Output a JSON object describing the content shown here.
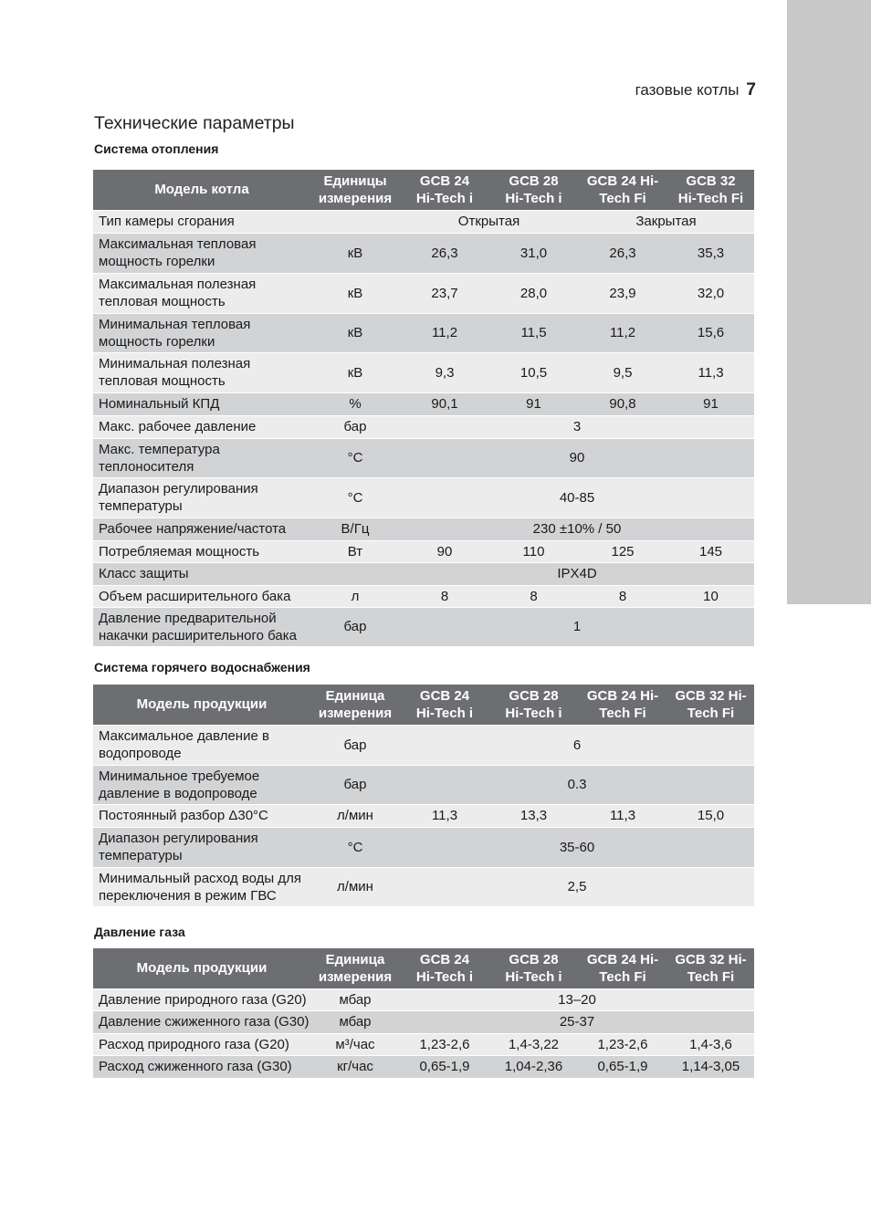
{
  "running_header": {
    "text": "газовые котлы",
    "page": "7"
  },
  "title": "Технические параметры",
  "colors": {
    "header_bg": "#6d6e71",
    "row_light": "#ececed",
    "row_dark": "#d2d3d5",
    "side_strip": "#c8c8c9"
  },
  "tables": [
    {
      "section": "Система отопления",
      "headers": [
        "Модель котла",
        "Единицы\nизмерения",
        "GCB 24\nHi-Tech i",
        "GCB 28\nHi-Tech i",
        "GCB 24 Hi-\nTech Fi",
        "GCB 32\nHi-Tech Fi"
      ],
      "rows": [
        {
          "label": "Тип камеры сгорания",
          "unit": "",
          "cells": [
            {
              "text": "Открытая",
              "span": 2
            },
            {
              "text": "Закрытая",
              "span": 2
            }
          ]
        },
        {
          "label": "Максимальная тепловая\nмощность горелки",
          "unit": "кВ",
          "cells": [
            {
              "text": "26,3"
            },
            {
              "text": "31,0"
            },
            {
              "text": "26,3"
            },
            {
              "text": "35,3"
            }
          ]
        },
        {
          "label": "Максимальная полезная\nтепловая мощность",
          "unit": "кВ",
          "cells": [
            {
              "text": "23,7"
            },
            {
              "text": "28,0"
            },
            {
              "text": "23,9"
            },
            {
              "text": "32,0"
            }
          ]
        },
        {
          "label": "Минимальная тепловая\nмощность горелки",
          "unit": "кВ",
          "cells": [
            {
              "text": "11,2"
            },
            {
              "text": "11,5"
            },
            {
              "text": "11,2"
            },
            {
              "text": "15,6"
            }
          ]
        },
        {
          "label": "Минимальная полезная\nтепловая мощность",
          "unit": "кВ",
          "cells": [
            {
              "text": "9,3"
            },
            {
              "text": "10,5"
            },
            {
              "text": "9,5"
            },
            {
              "text": "11,3"
            }
          ]
        },
        {
          "label": "Номинальный КПД",
          "unit": "%",
          "cells": [
            {
              "text": "90,1"
            },
            {
              "text": "91"
            },
            {
              "text": "90,8"
            },
            {
              "text": "91"
            }
          ]
        },
        {
          "label": "Макс. рабочее давление",
          "unit": "бар",
          "cells": [
            {
              "text": "3",
              "span": 4
            }
          ]
        },
        {
          "label": "Макс. температура\nтеплоносителя",
          "unit": "°C",
          "cells": [
            {
              "text": "90",
              "span": 4
            }
          ]
        },
        {
          "label": "Диапазон регулирования\nтемпературы",
          "unit": "°C",
          "cells": [
            {
              "text": "40-85",
              "span": 4
            }
          ]
        },
        {
          "label": "Рабочее напряжение/частота",
          "unit": "В/Гц",
          "cells": [
            {
              "text": "230 ±10% / 50",
              "span": 4
            }
          ]
        },
        {
          "label": "Потребляемая мощность",
          "unit": "Вт",
          "cells": [
            {
              "text": "90"
            },
            {
              "text": "110"
            },
            {
              "text": "125"
            },
            {
              "text": "145"
            }
          ]
        },
        {
          "label": "Класс защиты",
          "unit": "",
          "cells": [
            {
              "text": "IPX4D",
              "span": 4
            }
          ]
        },
        {
          "label": "Объем расширительного бака",
          "unit": "л",
          "cells": [
            {
              "text": "8"
            },
            {
              "text": "8"
            },
            {
              "text": "8"
            },
            {
              "text": "10"
            }
          ]
        },
        {
          "label": "Давление предварительной\nнакачки расширительного бака",
          "unit": "бар",
          "cells": [
            {
              "text": "1",
              "span": 4
            }
          ]
        }
      ]
    },
    {
      "section": "Система горячего водоснабжения",
      "headers": [
        "Модель продукции",
        "Единица\nизмерения",
        "GCB 24\nHi-Tech i",
        "GCB 28\nHi-Tech i",
        "GCB 24 Hi-\nTech Fi",
        "GCB 32 Hi-\nTech Fi"
      ],
      "rows": [
        {
          "label": "Максимальное давление в\nводопроводе",
          "unit": "бар",
          "cells": [
            {
              "text": "6",
              "span": 4
            }
          ]
        },
        {
          "label": "Минимальное требуемое\nдавление в водопроводе",
          "unit": "бар",
          "cells": [
            {
              "text": "0.3",
              "span": 4
            }
          ]
        },
        {
          "label": "Постоянный разбор Δ30°C",
          "unit": "л/мин",
          "cells": [
            {
              "text": "11,3"
            },
            {
              "text": "13,3"
            },
            {
              "text": "11,3"
            },
            {
              "text": "15,0"
            }
          ]
        },
        {
          "label": "Диапазон регулирования\nтемпературы",
          "unit": "°C",
          "cells": [
            {
              "text": "35-60",
              "span": 4
            }
          ]
        },
        {
          "label": "Минимальный расход воды для\nпереключения в режим ГВС",
          "unit": "л/мин",
          "cells": [
            {
              "text": "2,5",
              "span": 4
            }
          ]
        }
      ]
    },
    {
      "section": "Давление газа",
      "headers": [
        "Модель продукции",
        "Единица\nизмерения",
        "GCB 24\nHi-Tech i",
        "GCB 28\nHi-Tech i",
        "GCB 24 Hi-\nTech Fi",
        "GCB 32 Hi-\nTech Fi"
      ],
      "rows": [
        {
          "label": "Давление природного газа (G20)",
          "unit": "мбар",
          "cells": [
            {
              "text": "13–20",
              "span": 4
            }
          ]
        },
        {
          "label": "Давление сжиженного газа (G30)",
          "unit": "мбар",
          "cells": [
            {
              "text": "25-37",
              "span": 4
            }
          ]
        },
        {
          "label": "Расход природного газа (G20)",
          "unit": "м³/час",
          "cells": [
            {
              "text": "1,23-2,6"
            },
            {
              "text": "1,4-3,22"
            },
            {
              "text": "1,23-2,6"
            },
            {
              "text": "1,4-3,6"
            }
          ]
        },
        {
          "label": "Расход сжиженного газа (G30)",
          "unit": "кг/час",
          "cells": [
            {
              "text": "0,65-1,9"
            },
            {
              "text": "1,04-2,36"
            },
            {
              "text": "0,65-1,9"
            },
            {
              "text": "1,14-3,05"
            }
          ]
        }
      ]
    }
  ]
}
